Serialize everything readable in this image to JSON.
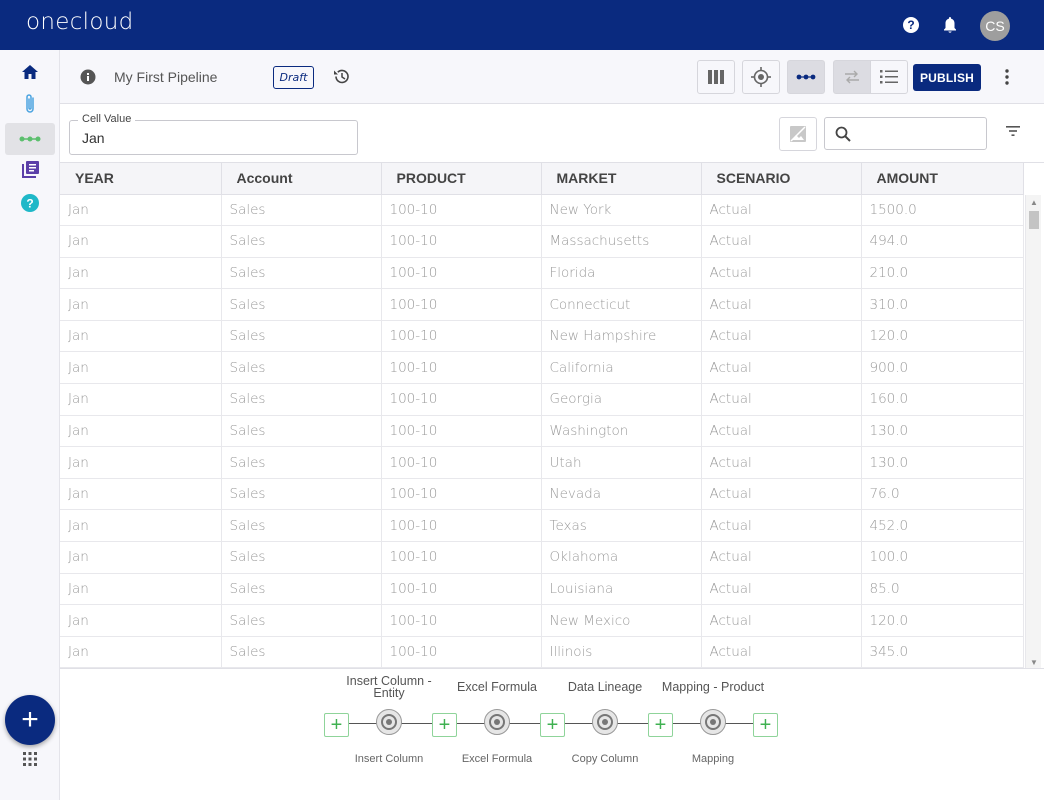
{
  "app": {
    "logo": "onecloud",
    "avatar_initials": "CS",
    "brand_color": "#0a2a7f"
  },
  "header": {
    "pipeline_title": "My First Pipeline",
    "status_badge": "Draft",
    "publish_label": "PUBLISH"
  },
  "cell": {
    "label": "Cell Value",
    "value": "Jan"
  },
  "search": {
    "value": "",
    "placeholder": ""
  },
  "table": {
    "columns": [
      "YEAR",
      "Account",
      "PRODUCT",
      "MARKET",
      "SCENARIO",
      "AMOUNT"
    ],
    "rows": [
      [
        "Jan",
        "Sales",
        "100-10",
        "New York",
        "Actual",
        "1500.0"
      ],
      [
        "Jan",
        "Sales",
        "100-10",
        "Massachusetts",
        "Actual",
        "494.0"
      ],
      [
        "Jan",
        "Sales",
        "100-10",
        "Florida",
        "Actual",
        "210.0"
      ],
      [
        "Jan",
        "Sales",
        "100-10",
        "Connecticut",
        "Actual",
        "310.0"
      ],
      [
        "Jan",
        "Sales",
        "100-10",
        "New Hampshire",
        "Actual",
        "120.0"
      ],
      [
        "Jan",
        "Sales",
        "100-10",
        "California",
        "Actual",
        "900.0"
      ],
      [
        "Jan",
        "Sales",
        "100-10",
        "Georgia",
        "Actual",
        "160.0"
      ],
      [
        "Jan",
        "Sales",
        "100-10",
        "Washington",
        "Actual",
        "130.0"
      ],
      [
        "Jan",
        "Sales",
        "100-10",
        "Utah",
        "Actual",
        "130.0"
      ],
      [
        "Jan",
        "Sales",
        "100-10",
        "Nevada",
        "Actual",
        "76.0"
      ],
      [
        "Jan",
        "Sales",
        "100-10",
        "Texas",
        "Actual",
        "452.0"
      ],
      [
        "Jan",
        "Sales",
        "100-10",
        "Oklahoma",
        "Actual",
        "100.0"
      ],
      [
        "Jan",
        "Sales",
        "100-10",
        "Louisiana",
        "Actual",
        "85.0"
      ],
      [
        "Jan",
        "Sales",
        "100-10",
        "New Mexico",
        "Actual",
        "120.0"
      ],
      [
        "Jan",
        "Sales",
        "100-10",
        "Illinois",
        "Actual",
        "345.0"
      ]
    ]
  },
  "pipeline": {
    "steps": [
      {
        "title": "Insert Column - Entity",
        "subtitle": "Insert Column"
      },
      {
        "title": "Excel Formula",
        "subtitle": "Excel Formula"
      },
      {
        "title": "Data Lineage",
        "subtitle": "Copy Column"
      },
      {
        "title": "Mapping - Product",
        "subtitle": "Mapping"
      }
    ]
  }
}
